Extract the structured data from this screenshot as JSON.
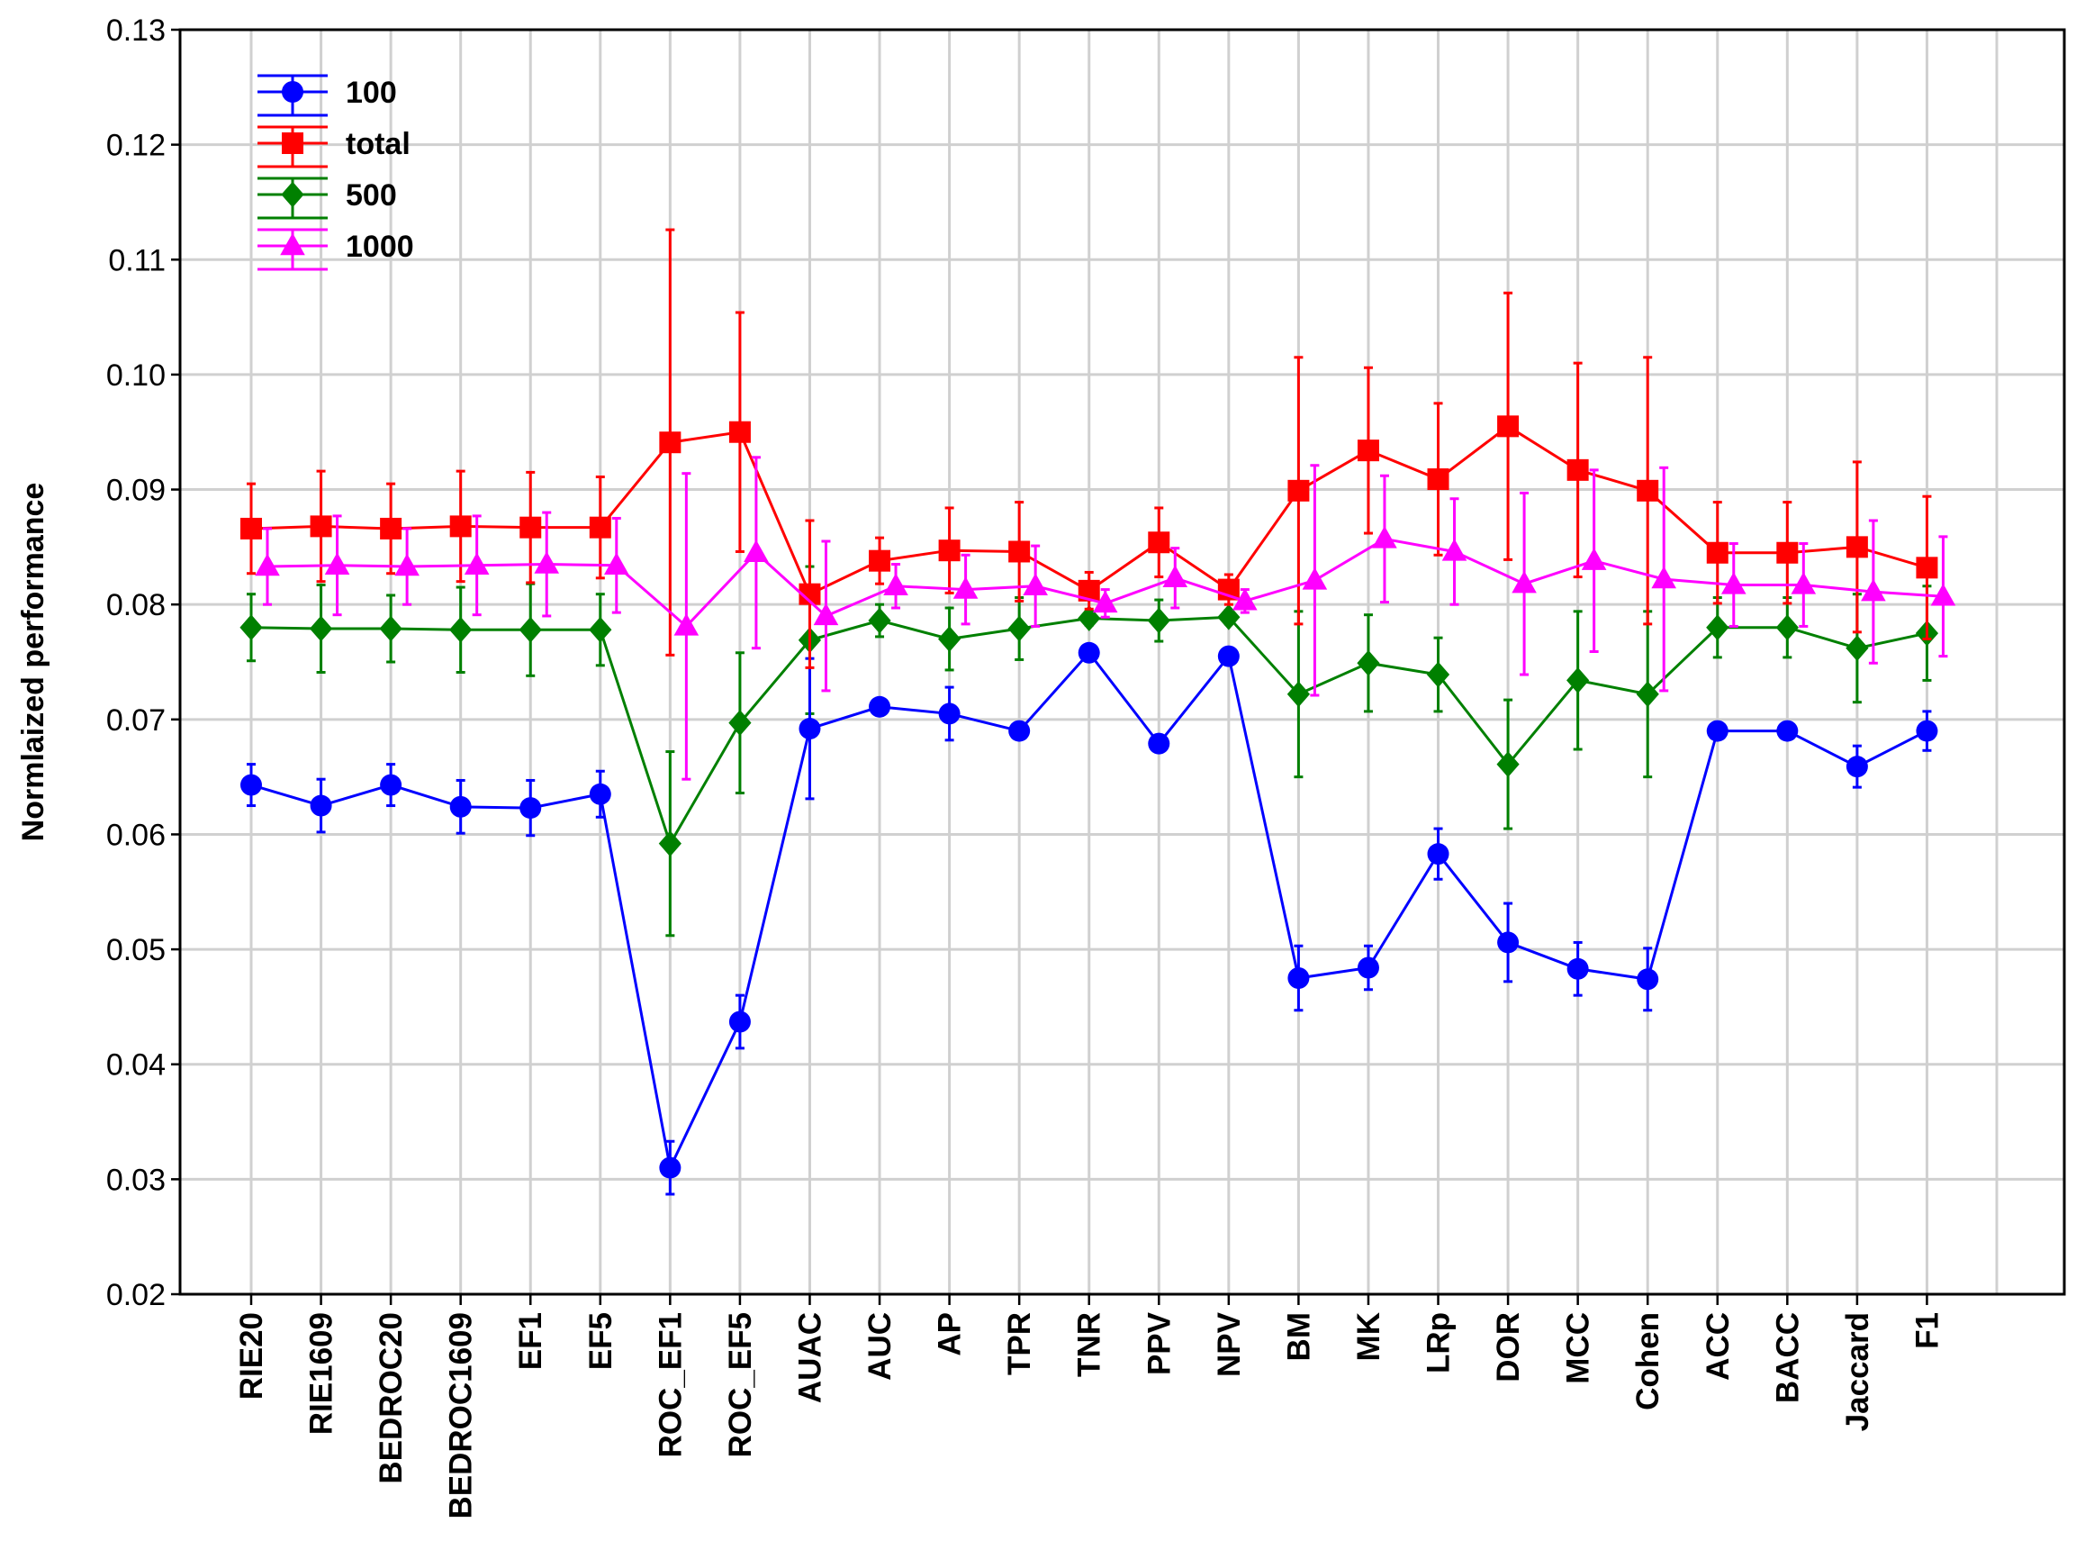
{
  "chart_data": {
    "type": "line",
    "title": "",
    "xlabel": "",
    "ylabel": "Normlaized performance",
    "ylim": [
      0.02,
      0.13
    ],
    "y_ticks": [
      "0.02",
      "0.03",
      "0.04",
      "0.05",
      "0.06",
      "0.07",
      "0.08",
      "0.09",
      "0.10",
      "0.11",
      "0.12",
      "0.13"
    ],
    "grid": true,
    "legend_position": "top-left",
    "categories": [
      "RIE20",
      "RIE1609",
      "BEDROC20",
      "BEDROC1609",
      "EF1",
      "EF5",
      "ROC_EF1",
      "ROC_EF5",
      "AUAC",
      "AUC",
      "AP",
      "TPR",
      "TNR",
      "PPV",
      "NPV",
      "BM",
      "MK",
      "LRp",
      "DOR",
      "MCC",
      "Cohen",
      "ACC",
      "BACC",
      "Jaccard",
      "F1"
    ],
    "series": [
      {
        "name": "100",
        "color": "#0000ff",
        "marker": "circle",
        "values": [
          0.0643,
          0.0625,
          0.0643,
          0.0624,
          0.0623,
          0.0635,
          0.031,
          0.0437,
          0.0692,
          0.0711,
          0.0705,
          0.069,
          0.0758,
          0.0679,
          0.0755,
          0.0475,
          0.0484,
          0.0583,
          0.0506,
          0.0483,
          0.0474,
          0.069,
          0.069,
          0.0659,
          0.069
        ],
        "errors": [
          0.0018,
          0.0023,
          0.0018,
          0.0023,
          0.0024,
          0.002,
          0.0023,
          0.0023,
          0.0061,
          0.0007,
          0.0023,
          0.0007,
          0.0007,
          0.0007,
          0.0007,
          0.0028,
          0.0019,
          0.0022,
          0.0034,
          0.0023,
          0.0027,
          0.0007,
          0.0007,
          0.0018,
          0.0017
        ]
      },
      {
        "name": "total",
        "color": "#ff0000",
        "marker": "square",
        "values": [
          0.0866,
          0.0868,
          0.0866,
          0.0868,
          0.0867,
          0.0867,
          0.0941,
          0.095,
          0.0809,
          0.0838,
          0.0847,
          0.0846,
          0.0812,
          0.0854,
          0.0813,
          0.0899,
          0.0934,
          0.0909,
          0.0955,
          0.0917,
          0.0899,
          0.0845,
          0.0845,
          0.085,
          0.0832
        ],
        "errors": [
          0.0039,
          0.0048,
          0.0039,
          0.0048,
          0.0048,
          0.0044,
          0.0185,
          0.0104,
          0.0064,
          0.002,
          0.0037,
          0.0043,
          0.0016,
          0.003,
          0.0013,
          0.0116,
          0.0072,
          0.0066,
          0.0116,
          0.0093,
          0.0116,
          0.0044,
          0.0044,
          0.0074,
          0.0062
        ]
      },
      {
        "name": "500",
        "color": "#008000",
        "marker": "diamond",
        "values": [
          0.078,
          0.0779,
          0.0779,
          0.0778,
          0.0778,
          0.0778,
          0.0592,
          0.0697,
          0.0769,
          0.0786,
          0.077,
          0.0779,
          0.0788,
          0.0786,
          0.0789,
          0.0722,
          0.0749,
          0.0739,
          0.0661,
          0.0734,
          0.0722,
          0.078,
          0.078,
          0.0762,
          0.0775
        ],
        "errors": [
          0.0029,
          0.0038,
          0.0029,
          0.0037,
          0.004,
          0.0031,
          0.008,
          0.0061,
          0.0064,
          0.0014,
          0.0027,
          0.0027,
          0.0006,
          0.0018,
          0.0006,
          0.0072,
          0.0042,
          0.0032,
          0.0056,
          0.006,
          0.0072,
          0.0026,
          0.0026,
          0.0047,
          0.0041
        ]
      },
      {
        "name": "1000",
        "color": "#ff00ff",
        "marker": "triangle",
        "values": [
          0.0833,
          0.0834,
          0.0833,
          0.0834,
          0.0835,
          0.0834,
          0.0781,
          0.0845,
          0.079,
          0.0816,
          0.0813,
          0.0816,
          0.0801,
          0.0823,
          0.0803,
          0.0821,
          0.0857,
          0.0846,
          0.0818,
          0.0838,
          0.0822,
          0.0817,
          0.0817,
          0.0811,
          0.0807
        ],
        "errors": [
          0.0033,
          0.0043,
          0.0033,
          0.0043,
          0.0045,
          0.0041,
          0.0133,
          0.0083,
          0.0065,
          0.0019,
          0.003,
          0.0035,
          0.0012,
          0.0026,
          0.001,
          0.01,
          0.0055,
          0.0046,
          0.0079,
          0.0079,
          0.0097,
          0.0036,
          0.0036,
          0.0062,
          0.0052
        ]
      }
    ]
  }
}
